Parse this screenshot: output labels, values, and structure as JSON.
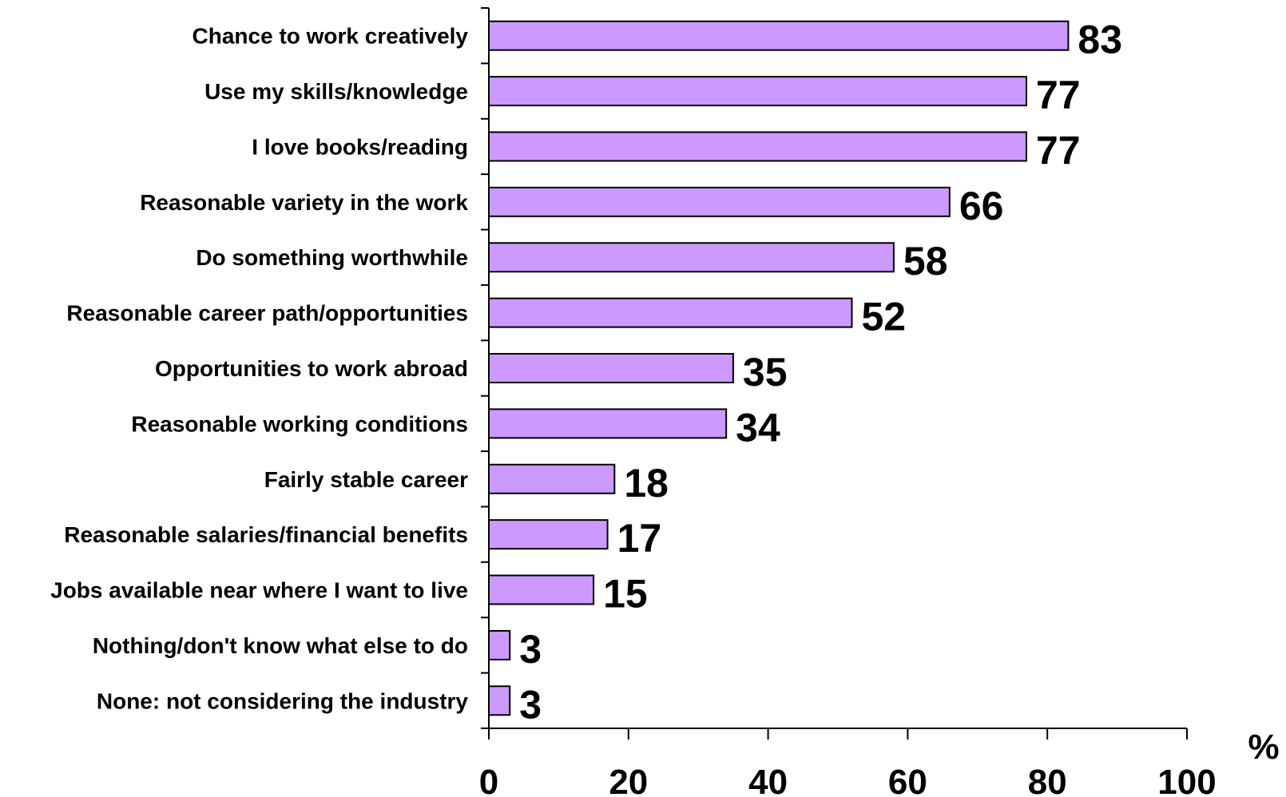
{
  "chart_data": {
    "type": "bar",
    "orientation": "horizontal",
    "categories": [
      "Chance to work creatively",
      "Use my skills/knowledge",
      "I love books/reading",
      "Reasonable variety in the work",
      "Do something worthwhile",
      "Reasonable career path/opportunities",
      "Opportunities to work abroad",
      "Reasonable working conditions",
      "Fairly stable career",
      "Reasonable salaries/financial benefits",
      "Jobs available near where I want to live",
      "Nothing/don't know what else to do",
      "None: not considering the industry"
    ],
    "values": [
      83,
      77,
      77,
      66,
      58,
      52,
      35,
      34,
      18,
      17,
      15,
      3,
      3
    ],
    "value_labels": [
      "83",
      "77",
      "77",
      "66",
      "58",
      "52",
      "35",
      "34",
      "18",
      "17",
      "15",
      "3",
      "3"
    ],
    "xlim": [
      0,
      100
    ],
    "x_ticks": [
      0,
      20,
      40,
      60,
      80,
      100
    ],
    "x_tick_labels": [
      "0",
      "20",
      "40",
      "60",
      "80",
      "100"
    ],
    "x_unit": "%",
    "bar_color": "#cc99ff",
    "bar_edge_color": "#000000",
    "grid": false,
    "legend": "none"
  }
}
